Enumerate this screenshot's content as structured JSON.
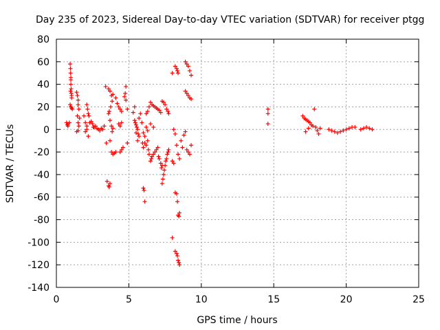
{
  "chart_data": {
    "type": "scatter",
    "title": "Day 235 of 2023, Sidereal Day-to-day VTEC variation (SDTVAR) for receiver ptgg",
    "xlabel": "GPS time / hours",
    "ylabel": "SDTVAR / TECUs",
    "xlim": [
      0,
      25
    ],
    "ylim": [
      -140,
      80
    ],
    "xticks": [
      "0",
      "5",
      "10",
      "15",
      "20",
      "25"
    ],
    "yticks": [
      "-140",
      "-120",
      "-100",
      "-80",
      "-60",
      "-40",
      "-20",
      "0",
      "20",
      "40",
      "60",
      "80"
    ],
    "grid": true,
    "marker": "+",
    "color": "#ff0000",
    "series": [
      {
        "name": "SDTVAR",
        "points": [
          [
            0.7,
            6
          ],
          [
            0.75,
            4
          ],
          [
            0.8,
            3
          ],
          [
            0.8,
            5
          ],
          [
            0.9,
            6
          ],
          [
            0.95,
            58
          ],
          [
            0.97,
            54
          ],
          [
            0.98,
            50
          ],
          [
            1.0,
            46
          ],
          [
            1.0,
            44
          ],
          [
            1.0,
            40
          ],
          [
            1.02,
            36
          ],
          [
            1.03,
            32
          ],
          [
            1.05,
            28
          ],
          [
            0.98,
            34
          ],
          [
            1.05,
            30
          ],
          [
            0.95,
            22
          ],
          [
            1.0,
            20
          ],
          [
            1.05,
            19
          ],
          [
            1.1,
            18
          ],
          [
            1.4,
            33
          ],
          [
            1.45,
            30
          ],
          [
            1.5,
            26
          ],
          [
            1.5,
            22
          ],
          [
            1.55,
            18
          ],
          [
            1.45,
            12
          ],
          [
            1.5,
            6
          ],
          [
            1.55,
            3
          ],
          [
            1.4,
            -2
          ],
          [
            1.5,
            -1
          ],
          [
            1.6,
            10
          ],
          [
            1.9,
            12
          ],
          [
            2.0,
            6
          ],
          [
            2.1,
            3
          ],
          [
            2.0,
            -2
          ],
          [
            2.1,
            0
          ],
          [
            2.2,
            -6
          ],
          [
            2.1,
            22
          ],
          [
            2.15,
            18
          ],
          [
            2.2,
            14
          ],
          [
            2.25,
            12
          ],
          [
            2.3,
            6
          ],
          [
            2.4,
            7
          ],
          [
            2.5,
            5
          ],
          [
            2.55,
            2
          ],
          [
            2.6,
            2
          ],
          [
            2.7,
            3
          ],
          [
            2.8,
            1
          ],
          [
            2.9,
            0
          ],
          [
            3.0,
            -1
          ],
          [
            3.1,
            1
          ],
          [
            3.2,
            0
          ],
          [
            3.3,
            3
          ],
          [
            3.4,
            38
          ],
          [
            3.45,
            -12
          ],
          [
            3.5,
            -46
          ],
          [
            3.6,
            -50
          ],
          [
            3.65,
            -51
          ],
          [
            3.7,
            -48
          ],
          [
            3.6,
            36
          ],
          [
            3.7,
            34
          ],
          [
            3.8,
            30
          ],
          [
            3.85,
            25
          ],
          [
            3.75,
            20
          ],
          [
            3.65,
            16
          ],
          [
            3.6,
            14
          ],
          [
            3.7,
            8
          ],
          [
            3.8,
            3
          ],
          [
            3.85,
            -2
          ],
          [
            3.9,
            1
          ],
          [
            3.7,
            -10
          ],
          [
            3.8,
            -20
          ],
          [
            3.9,
            -22
          ],
          [
            4.0,
            -21
          ],
          [
            4.1,
            -20
          ],
          [
            3.9,
            31
          ],
          [
            4.1,
            28
          ],
          [
            4.2,
            23
          ],
          [
            4.3,
            20
          ],
          [
            4.4,
            18
          ],
          [
            4.5,
            16
          ],
          [
            4.3,
            5
          ],
          [
            4.4,
            3
          ],
          [
            4.5,
            6
          ],
          [
            4.4,
            -20
          ],
          [
            4.5,
            -18
          ],
          [
            4.6,
            -16
          ],
          [
            4.7,
            29
          ],
          [
            4.75,
            32
          ],
          [
            4.8,
            38
          ],
          [
            4.8,
            26
          ],
          [
            4.9,
            -12
          ],
          [
            4.9,
            18
          ],
          [
            5.3,
            15
          ],
          [
            5.4,
            20
          ],
          [
            5.4,
            8
          ],
          [
            5.45,
            6
          ],
          [
            5.5,
            4
          ],
          [
            5.55,
            2
          ],
          [
            5.6,
            0
          ],
          [
            5.65,
            -4
          ],
          [
            5.7,
            -6
          ],
          [
            5.6,
            -10
          ],
          [
            5.5,
            -3
          ],
          [
            5.7,
            10
          ],
          [
            5.8,
            14
          ],
          [
            5.9,
            6
          ],
          [
            5.95,
            -12
          ],
          [
            6.0,
            -16
          ],
          [
            6.0,
            -52
          ],
          [
            6.05,
            -54
          ],
          [
            6.1,
            -64
          ],
          [
            6.1,
            -12
          ],
          [
            6.2,
            -14
          ],
          [
            6.3,
            -10
          ],
          [
            6.35,
            -18
          ],
          [
            6.4,
            -22
          ],
          [
            6.5,
            -28
          ],
          [
            6.55,
            -26
          ],
          [
            6.6,
            -24
          ],
          [
            6.7,
            -22
          ],
          [
            6.8,
            -20
          ],
          [
            6.9,
            -18
          ],
          [
            7.0,
            -16
          ],
          [
            7.05,
            -24
          ],
          [
            7.1,
            -26
          ],
          [
            7.2,
            -30
          ],
          [
            7.25,
            -34
          ],
          [
            7.3,
            -32
          ],
          [
            7.3,
            -48
          ],
          [
            7.35,
            -44
          ],
          [
            7.4,
            -40
          ],
          [
            7.45,
            -36
          ],
          [
            7.5,
            -32
          ],
          [
            7.55,
            -28
          ],
          [
            7.6,
            -26
          ],
          [
            7.65,
            -22
          ],
          [
            7.7,
            -20
          ],
          [
            7.75,
            -18
          ],
          [
            6.0,
            -3
          ],
          [
            6.1,
            -6
          ],
          [
            6.2,
            2
          ],
          [
            6.3,
            -1
          ],
          [
            6.5,
            5
          ],
          [
            6.7,
            2
          ],
          [
            6.2,
            14
          ],
          [
            6.3,
            16
          ],
          [
            6.4,
            20
          ],
          [
            6.5,
            24
          ],
          [
            6.6,
            22
          ],
          [
            6.7,
            21
          ],
          [
            6.8,
            20
          ],
          [
            6.9,
            19
          ],
          [
            7.0,
            18
          ],
          [
            7.1,
            17
          ],
          [
            7.2,
            15
          ],
          [
            7.3,
            25
          ],
          [
            7.4,
            24
          ],
          [
            7.5,
            22
          ],
          [
            7.6,
            18
          ],
          [
            7.7,
            16
          ],
          [
            7.75,
            14
          ],
          [
            8.1,
            0
          ],
          [
            8.2,
            -4
          ],
          [
            8.3,
            -14
          ],
          [
            8.4,
            -22
          ],
          [
            8.5,
            -26
          ],
          [
            8.0,
            -28
          ],
          [
            8.1,
            -30
          ],
          [
            8.2,
            56
          ],
          [
            8.3,
            54
          ],
          [
            8.35,
            52
          ],
          [
            8.4,
            50
          ],
          [
            8.0,
            50
          ],
          [
            8.0,
            -96
          ],
          [
            8.2,
            -56
          ],
          [
            8.3,
            -57
          ],
          [
            8.35,
            -64
          ],
          [
            8.4,
            -76
          ],
          [
            8.45,
            -77
          ],
          [
            8.5,
            -74
          ],
          [
            8.2,
            -108
          ],
          [
            8.3,
            -110
          ],
          [
            8.35,
            -112
          ],
          [
            8.4,
            -116
          ],
          [
            8.45,
            -118
          ],
          [
            8.5,
            -120
          ],
          [
            8.6,
            -10
          ],
          [
            8.7,
            -16
          ],
          [
            8.8,
            -5
          ],
          [
            8.9,
            -2
          ],
          [
            9.0,
            -18
          ],
          [
            9.1,
            -20
          ],
          [
            9.2,
            -22
          ],
          [
            9.3,
            -14
          ],
          [
            8.9,
            60
          ],
          [
            9.0,
            58
          ],
          [
            9.1,
            56
          ],
          [
            9.2,
            52
          ],
          [
            9.3,
            48
          ],
          [
            8.9,
            34
          ],
          [
            9.0,
            32
          ],
          [
            9.1,
            30
          ],
          [
            9.2,
            28
          ],
          [
            9.3,
            27
          ],
          [
            14.6,
            18
          ],
          [
            14.6,
            14
          ],
          [
            14.6,
            5
          ],
          [
            17.0,
            12
          ],
          [
            17.1,
            10
          ],
          [
            17.2,
            9
          ],
          [
            17.3,
            8
          ],
          [
            17.4,
            7
          ],
          [
            17.5,
            6
          ],
          [
            17.6,
            4
          ],
          [
            17.7,
            3
          ],
          [
            17.2,
            -2
          ],
          [
            17.4,
            1
          ],
          [
            17.8,
            18
          ],
          [
            17.9,
            2
          ],
          [
            18.0,
            -1
          ],
          [
            18.1,
            -4
          ],
          [
            18.2,
            1
          ],
          [
            18.8,
            0
          ],
          [
            19.0,
            -1
          ],
          [
            19.2,
            -2
          ],
          [
            19.4,
            -3
          ],
          [
            19.6,
            -2
          ],
          [
            19.8,
            -1
          ],
          [
            20.0,
            0
          ],
          [
            20.2,
            1
          ],
          [
            20.4,
            2
          ],
          [
            20.6,
            2
          ],
          [
            21.0,
            0
          ],
          [
            21.2,
            1
          ],
          [
            21.4,
            2
          ],
          [
            21.6,
            1
          ],
          [
            21.8,
            0
          ]
        ]
      }
    ]
  }
}
